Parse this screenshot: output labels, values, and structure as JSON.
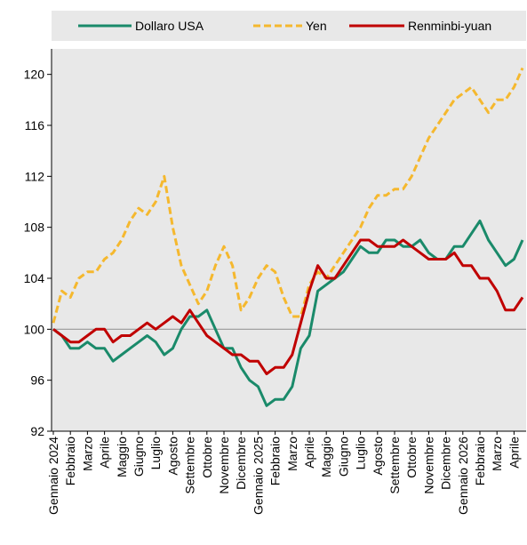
{
  "chart_data": {
    "type": "line",
    "categories": [
      "Gennaio 2024",
      null,
      "Febbraio",
      null,
      "Marzo",
      null,
      "Aprile",
      null,
      "Maggio",
      null,
      "Giugno",
      null,
      "Luglio",
      null,
      "Agosto",
      null,
      "Settembre",
      null,
      "Ottobre",
      null,
      "Novembre",
      null,
      "Dicembre",
      null,
      "Gennaio 2025",
      null,
      "Febbraio",
      null,
      "Marzo",
      null,
      "Aprile",
      null,
      "Maggio",
      null,
      "Giugno",
      null,
      "Luglio",
      null,
      "Agosto",
      null,
      "Settembre",
      null,
      "Ottobre",
      null,
      "Novembre",
      null,
      "Dicembre",
      null,
      "Gennaio 2026",
      null,
      "Febbraio",
      null,
      "Marzo",
      null,
      "Aprile",
      null
    ],
    "series": [
      {
        "name": "Dollaro USA",
        "color": "#1a8a6a",
        "dash": "solid",
        "values": [
          100,
          99.5,
          98.5,
          98.5,
          99,
          98.5,
          98.5,
          97.5,
          98,
          98.5,
          99,
          99.5,
          99,
          98,
          98.5,
          100,
          101,
          101,
          101.5,
          100,
          98.5,
          98.5,
          97,
          96,
          95.5,
          94,
          94.5,
          94.5,
          95.5,
          98.5,
          99.5,
          103,
          103.5,
          104,
          104.5,
          105.5,
          106.5,
          106,
          106,
          107,
          107,
          106.5,
          106.5,
          107,
          106,
          105.5,
          105.5,
          106.5,
          106.5,
          107.5,
          108.5,
          107,
          106,
          105,
          105.5,
          107
        ]
      },
      {
        "name": "Yen",
        "color": "#f5b82e",
        "dash": "dashed",
        "values": [
          100.5,
          103,
          102.5,
          104,
          104.5,
          104.5,
          105.5,
          106,
          107,
          108.5,
          109.5,
          109,
          110,
          112,
          108,
          105,
          103.5,
          102,
          103,
          105,
          106.5,
          105,
          101.5,
          102.5,
          104,
          105,
          104.5,
          102.5,
          101,
          101,
          103.5,
          104.5,
          104,
          105,
          106,
          107,
          108,
          109.5,
          110.5,
          110.5,
          111,
          111,
          112,
          113.5,
          115,
          116,
          117,
          118,
          118.5,
          119,
          118,
          117,
          118,
          118,
          119,
          120.5
        ]
      },
      {
        "name": "Renminbi-yuan",
        "color": "#c00000",
        "dash": "solid",
        "values": [
          100,
          99.5,
          99,
          99,
          99.5,
          100,
          100,
          99,
          99.5,
          99.5,
          100,
          100.5,
          100,
          100.5,
          101,
          100.5,
          101.5,
          100.5,
          99.5,
          99,
          98.5,
          98,
          98,
          97.5,
          97.5,
          96.5,
          97,
          97,
          98,
          100.5,
          103,
          105,
          104,
          104,
          105,
          106,
          107,
          107,
          106.5,
          106.5,
          106.5,
          107,
          106.5,
          106,
          105.5,
          105.5,
          105.5,
          106,
          105,
          105,
          104,
          104,
          103,
          101.5,
          101.5,
          102.5
        ]
      }
    ],
    "ylim": [
      92,
      122
    ],
    "yticks": [
      92,
      96,
      100,
      104,
      108,
      112,
      116,
      120
    ],
    "reference_line": 100,
    "grid": false,
    "legend": "top"
  }
}
